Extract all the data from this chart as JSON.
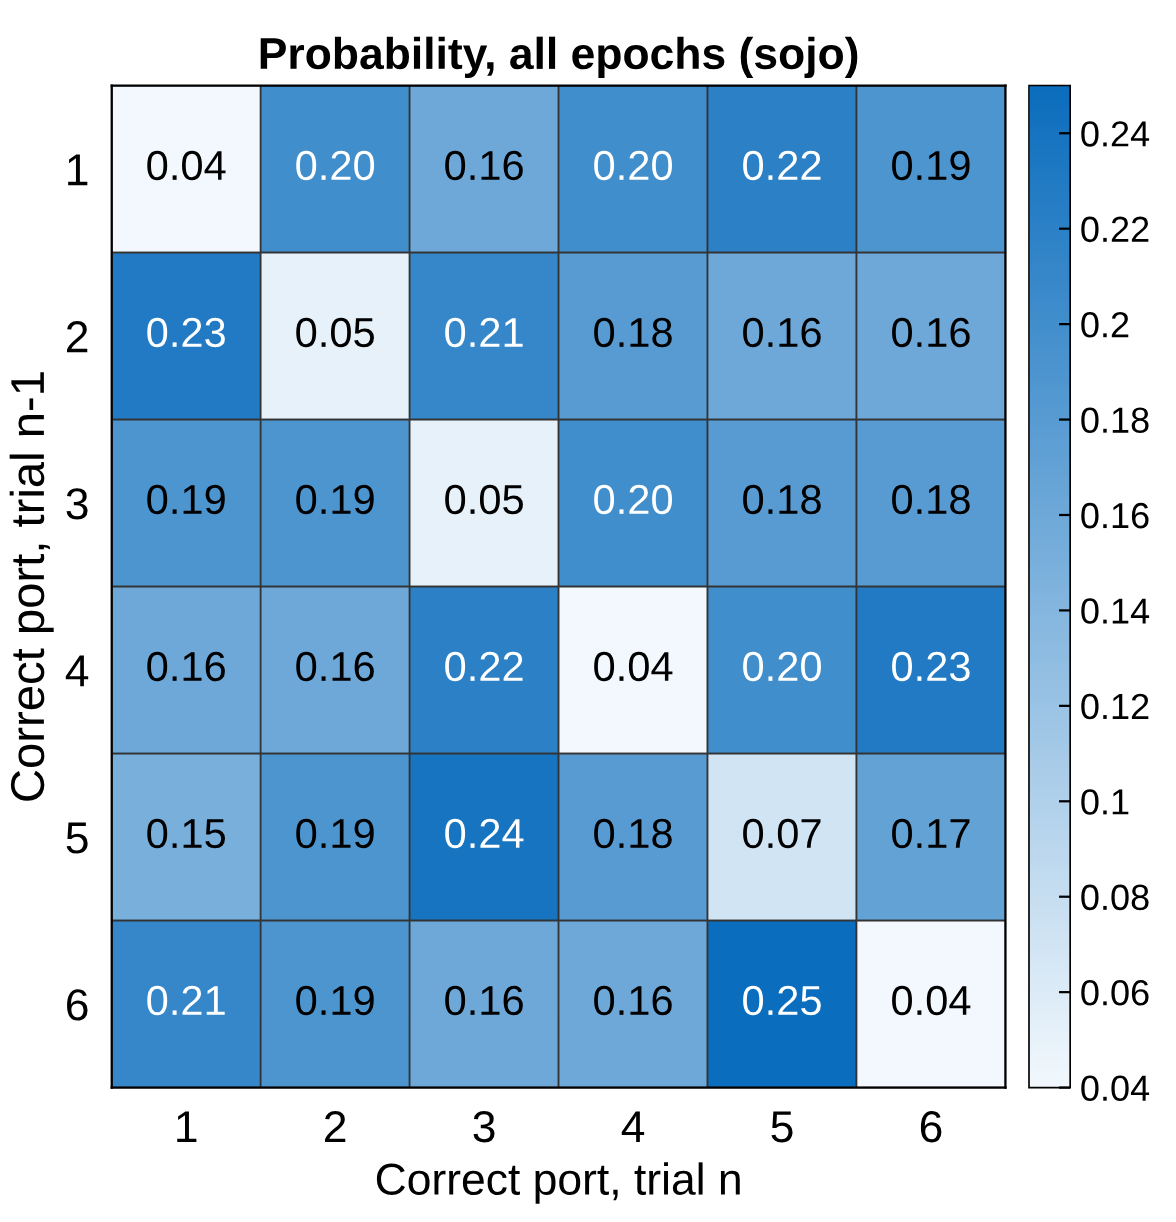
{
  "chart_data": {
    "type": "heatmap",
    "title": "Probability, all epochs (sojo)",
    "xlabel": "Correct port, trial n",
    "ylabel": "Correct port, trial n-1",
    "categories": [
      "1",
      "2",
      "3",
      "4",
      "5",
      "6"
    ],
    "y_categories": [
      "1",
      "2",
      "3",
      "4",
      "5",
      "6"
    ],
    "cells": [
      [
        0.04,
        0.2,
        0.16,
        0.2,
        0.22,
        0.19
      ],
      [
        0.23,
        0.05,
        0.21,
        0.18,
        0.16,
        0.16
      ],
      [
        0.19,
        0.19,
        0.05,
        0.2,
        0.18,
        0.18
      ],
      [
        0.16,
        0.16,
        0.22,
        0.04,
        0.2,
        0.23
      ],
      [
        0.15,
        0.19,
        0.24,
        0.18,
        0.07,
        0.17
      ],
      [
        0.21,
        0.19,
        0.16,
        0.16,
        0.25,
        0.04
      ]
    ],
    "cell_labels": [
      [
        "0.04",
        "0.20",
        "0.16",
        "0.20",
        "0.22",
        "0.19"
      ],
      [
        "0.23",
        "0.05",
        "0.21",
        "0.18",
        "0.16",
        "0.16"
      ],
      [
        "0.19",
        "0.19",
        "0.05",
        "0.20",
        "0.18",
        "0.18"
      ],
      [
        "0.16",
        "0.16",
        "0.22",
        "0.04",
        "0.20",
        "0.23"
      ],
      [
        "0.15",
        "0.19",
        "0.24",
        "0.18",
        "0.07",
        "0.17"
      ],
      [
        "0.21",
        "0.19",
        "0.16",
        "0.16",
        "0.25",
        "0.04"
      ]
    ],
    "clim": [
      0.04,
      0.25
    ],
    "cticks": [
      0.04,
      0.06,
      0.08,
      0.1,
      0.12,
      0.14,
      0.16,
      0.18,
      0.2,
      0.22,
      0.24
    ]
  }
}
